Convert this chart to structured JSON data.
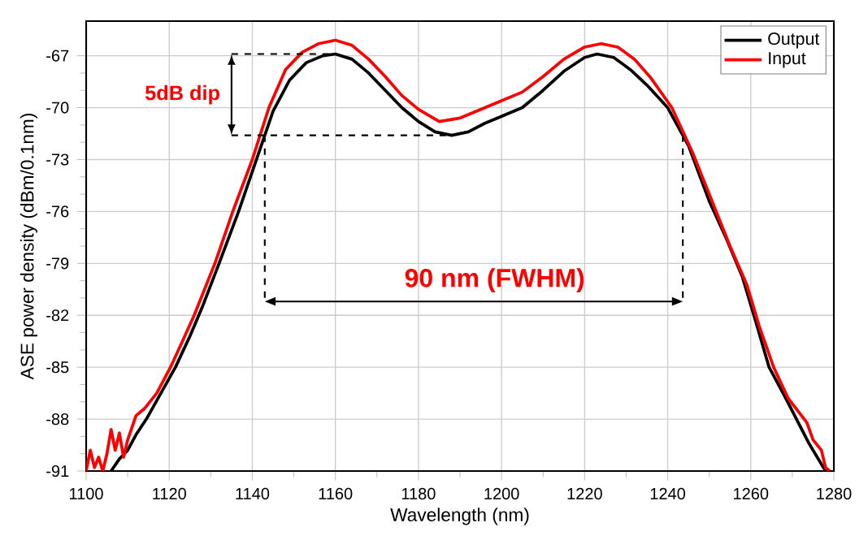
{
  "chart_data": {
    "type": "line",
    "xlabel": "Wavelength (nm)",
    "ylabel": "ASE power density (dBm/0.1nm)",
    "xlim": [
      1100,
      1280
    ],
    "ylim": [
      -91,
      -65
    ],
    "xticks": [
      1100,
      1120,
      1140,
      1160,
      1180,
      1200,
      1220,
      1240,
      1260,
      1280
    ],
    "yticks": [
      -91,
      -88,
      -85,
      -82,
      -79,
      -76,
      -73,
      -70,
      -67
    ],
    "grid": true,
    "legend": "top right",
    "marker": "none",
    "line_style": "solid",
    "series": [
      {
        "name": "Output",
        "color": "#000000",
        "x": [
          1106,
          1108,
          1110,
          1112,
          1114.5,
          1118,
          1121.5,
          1125,
          1128,
          1132,
          1136.7,
          1141,
          1145,
          1149,
          1153,
          1157,
          1160,
          1164,
          1168,
          1172,
          1176,
          1180,
          1184,
          1188,
          1192,
          1196,
          1200,
          1205,
          1210,
          1215,
          1220,
          1223,
          1227,
          1231,
          1235,
          1240,
          1245,
          1250,
          1254,
          1258,
          1261,
          1264.4,
          1268,
          1271,
          1274,
          1276,
          1278
        ],
        "values": [
          -91,
          -90.3,
          -89.8,
          -88.9,
          -88,
          -86.5,
          -85,
          -83.2,
          -81.5,
          -79,
          -76,
          -73,
          -70.2,
          -68.4,
          -67.4,
          -67.0,
          -66.9,
          -67.2,
          -68.0,
          -69.0,
          -70.0,
          -70.8,
          -71.4,
          -71.6,
          -71.4,
          -70.9,
          -70.5,
          -70.0,
          -69.0,
          -67.9,
          -67.1,
          -66.9,
          -67.1,
          -67.8,
          -68.7,
          -70.0,
          -72.2,
          -75.4,
          -77.5,
          -79.8,
          -82.2,
          -85,
          -86.6,
          -88,
          -89.4,
          -90.2,
          -91
        ]
      },
      {
        "name": "Input",
        "color": "#ff0000",
        "x": [
          1100,
          1101,
          1102,
          1103,
          1104,
          1105,
          1106,
          1107,
          1108,
          1109,
          1110,
          1112,
          1114,
          1117,
          1120.3,
          1123,
          1126,
          1131,
          1135.3,
          1140,
          1144,
          1148,
          1152,
          1156,
          1160,
          1164,
          1168,
          1172,
          1176,
          1180,
          1185,
          1190,
          1195,
          1200,
          1205,
          1210,
          1215,
          1220,
          1224,
          1228,
          1232,
          1236,
          1241,
          1246,
          1250,
          1255,
          1259,
          1262,
          1265.5,
          1269,
          1273.5,
          1275,
          1277,
          1278,
          1279
        ],
        "values": [
          -91,
          -89.8,
          -90.8,
          -90.2,
          -91,
          -90,
          -88.6,
          -89.8,
          -88.8,
          -90.2,
          -89.2,
          -87.8,
          -87.4,
          -86.5,
          -85,
          -83.6,
          -82,
          -79,
          -76,
          -73,
          -70,
          -67.8,
          -66.8,
          -66.3,
          -66.1,
          -66.4,
          -67.2,
          -68.2,
          -69.3,
          -70.1,
          -70.8,
          -70.6,
          -70.1,
          -69.6,
          -69.1,
          -68.2,
          -67.2,
          -66.5,
          -66.3,
          -66.5,
          -67.2,
          -68.3,
          -70,
          -72.6,
          -75,
          -78,
          -80.2,
          -82.6,
          -85,
          -86.8,
          -88.2,
          -89.2,
          -89.8,
          -90.8,
          -91
        ]
      }
    ],
    "annotations": [
      "5dB dip",
      "90 nm (FWHM)"
    ]
  }
}
